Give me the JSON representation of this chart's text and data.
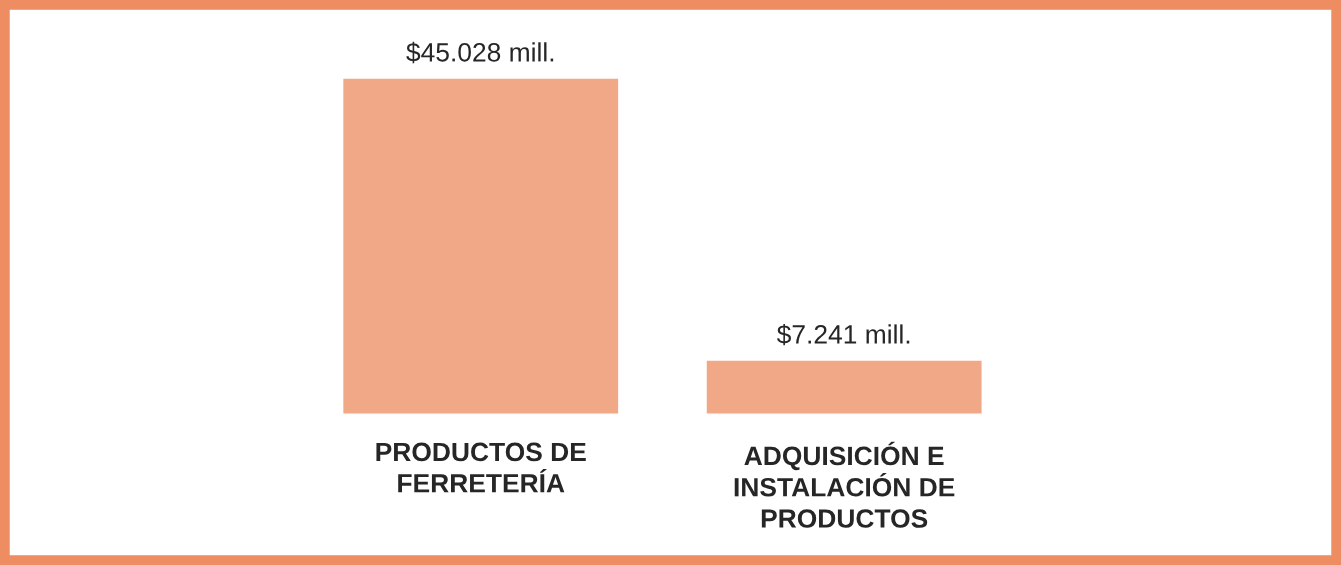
{
  "chart_data": {
    "type": "bar",
    "categories": [
      "PRODUCTOS DE\nFERRETERÍA",
      "ADQUISICIÓN E\nINSTALACIÓN DE\nPRODUCTOS"
    ],
    "values": [
      45028,
      7241
    ],
    "value_labels": [
      "$45.028 mill.",
      "$7.241 mill."
    ],
    "color": "#f0a886",
    "grid": false,
    "legend": false
  }
}
